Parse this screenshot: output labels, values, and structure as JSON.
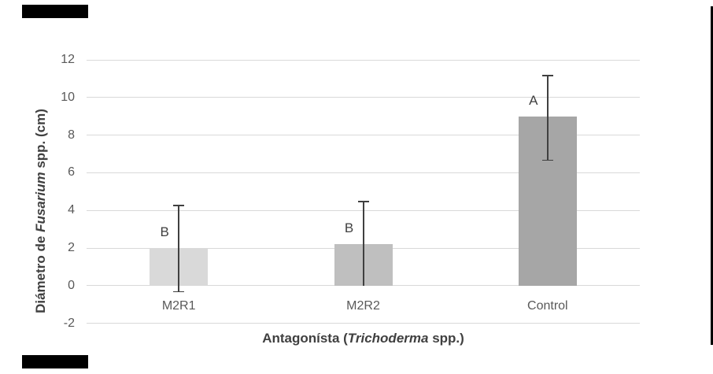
{
  "chart_data": {
    "type": "bar",
    "title": "",
    "categories": [
      "M2R1",
      "M2R2",
      "Control"
    ],
    "values": [
      2.0,
      2.2,
      9.0
    ],
    "significance_labels": [
      "B",
      "B",
      "A"
    ],
    "error_bars": [
      {
        "low": -0.3,
        "high": 4.3,
        "show_low_cap": true
      },
      {
        "low": 0.0,
        "high": 4.5,
        "show_low_cap": false
      },
      {
        "low": 6.7,
        "high": 11.2,
        "show_low_cap": true
      }
    ],
    "bar_colors": [
      "#d9d9d9",
      "#bfbfbf",
      "#a6a6a6"
    ],
    "xlabel": "Antagonísta (Trichoderma spp.)",
    "xlabel_parts": [
      {
        "text": "Antagonísta (",
        "italic": false
      },
      {
        "text": "Trichoderma",
        "italic": true
      },
      {
        "text": " spp.)",
        "italic": false
      }
    ],
    "ylabel": "Diámetro de Fusarium spp. (cm)",
    "ylabel_parts": [
      {
        "text": "Diámetro de ",
        "italic": false
      },
      {
        "text": "Fusarium",
        "italic": true
      },
      {
        "text": " spp. (cm)",
        "italic": false
      }
    ],
    "yticks": [
      12,
      10,
      8,
      6,
      4,
      2,
      0,
      -2
    ],
    "ylim": [
      -2,
      12
    ],
    "grid": true,
    "legend": false,
    "colors": {
      "gridline": "#d9d9d9",
      "tick_text": "#595959",
      "category_text": "#595959",
      "axis_title_text": "#404040",
      "significance_text": "#404040",
      "error_bar": "#404040",
      "background": "#ffffff",
      "artifact_marks": "#000000"
    }
  },
  "artifacts": {
    "top_left_bar": "black rectangle fragment, top-left corner",
    "bottom_left_bar": "black rectangle fragment, bottom-left corner",
    "right_edge_line": "thin black vertical line at right edge"
  }
}
